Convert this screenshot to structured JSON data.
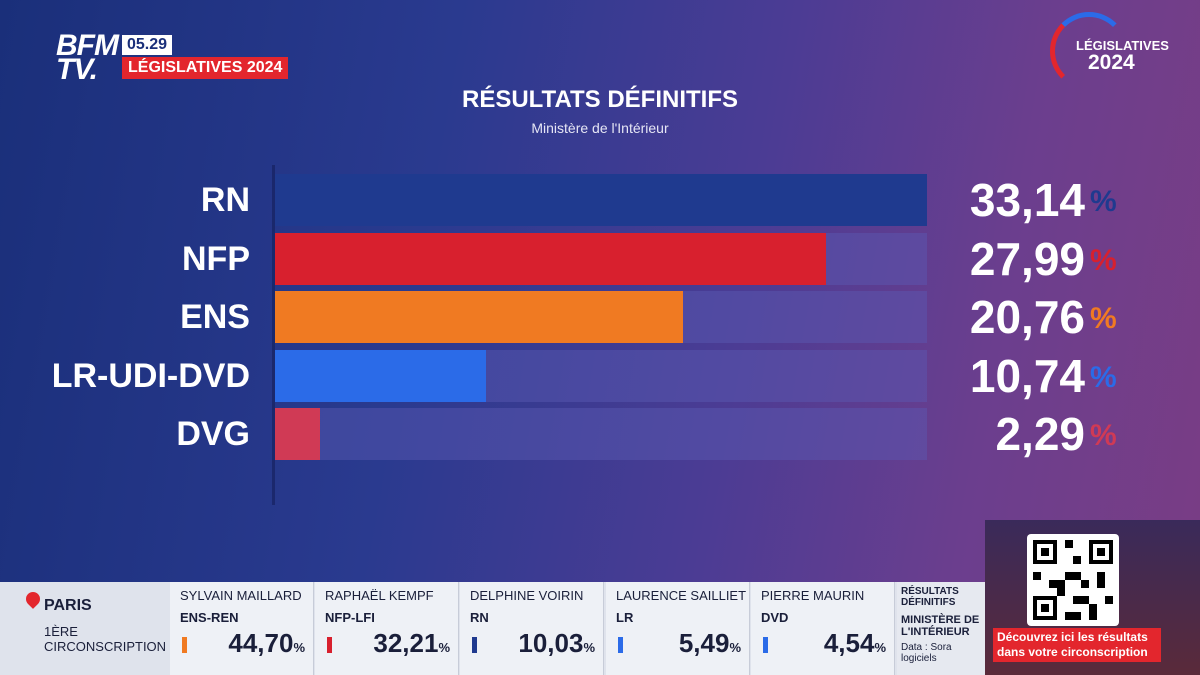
{
  "header": {
    "channel_logo": "BFM TV.",
    "time": "05.29",
    "show": "LÉGISLATIVES 2024",
    "brand_line1": "LÉGISLATIVES",
    "brand_line2": "2024"
  },
  "chart_data": {
    "type": "bar",
    "orientation": "horizontal",
    "title": "RÉSULTATS DÉFINITIFS",
    "subtitle": "Ministère de l'Intérieur",
    "categories": [
      "RN",
      "NFP",
      "ENS",
      "LR-UDI-DVD",
      "DVG"
    ],
    "values": [
      33.14,
      27.99,
      20.76,
      10.74,
      2.29
    ],
    "value_labels": [
      "33,14",
      "27,99",
      "20,76",
      "10,74",
      "2,29"
    ],
    "unit": "%",
    "colors": [
      "#1f3a8f",
      "#d8202e",
      "#f07a22",
      "#2b6be8",
      "#d03a55"
    ],
    "pct_colors": [
      "#1f3a8f",
      "#d8202e",
      "#f07a22",
      "#2b6be8",
      "#d03a55"
    ],
    "xlim": [
      0,
      33.14
    ],
    "grid": false,
    "legend": "none"
  },
  "ticker": {
    "city": "PARIS",
    "circonscription": "1ÈRE CIRCONSCRIPTION",
    "candidates": [
      {
        "name": "SYLVAIN MAILLARD",
        "party": "ENS-REN",
        "value": "44,70",
        "unit": "%",
        "color": "#f07a22"
      },
      {
        "name": "RAPHAËL KEMPF",
        "party": "NFP-LFI",
        "value": "32,21",
        "unit": "%",
        "color": "#d8202e"
      },
      {
        "name": "DELPHINE VOIRIN",
        "party": "RN",
        "value": "10,03",
        "unit": "%",
        "color": "#1f3a8f"
      },
      {
        "name": "LAURENCE SAILLIET",
        "party": "LR",
        "value": "5,49",
        "unit": "%",
        "color": "#2b6be8"
      },
      {
        "name": "PIERRE MAURIN",
        "party": "DVD",
        "value": "4,54",
        "unit": "%",
        "color": "#2b6be8"
      }
    ],
    "source_line1": "RÉSULTATS DÉFINITIFS",
    "source_line2": "MINISTÈRE DE L'INTÉRIEUR",
    "source_line3": "Data : Sora logiciels"
  },
  "promo": {
    "text": "Découvrez ici les résultats dans votre circonscription"
  }
}
